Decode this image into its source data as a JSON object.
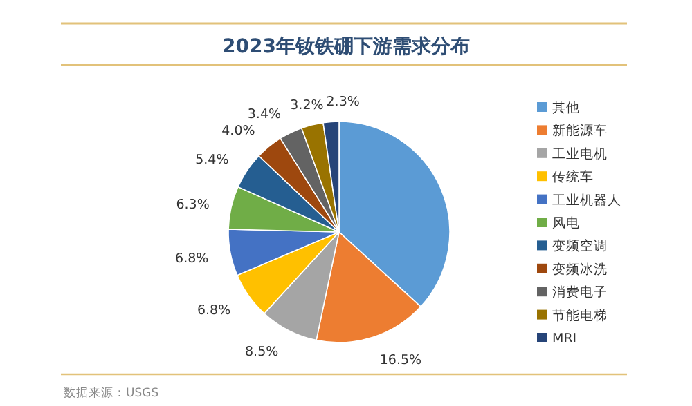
{
  "chart_data": {
    "type": "pie",
    "title": "2023年钕铁硼下游需求分布",
    "categories": [
      "其他",
      "新能源车",
      "工业电机",
      "传统车",
      "工业机器人",
      "风电",
      "变频空调",
      "变频冰洗",
      "消费电子",
      "节能电梯",
      "MRI"
    ],
    "values": [
      36.8,
      16.5,
      8.5,
      6.8,
      6.8,
      6.3,
      5.4,
      4.0,
      3.4,
      3.2,
      2.3
    ],
    "value_labels": [
      null,
      "16.5%",
      "8.5%",
      "6.8%",
      "6.8%",
      "6.3%",
      "5.4%",
      "4.0%",
      "3.4%",
      "3.2%",
      "2.3%"
    ],
    "colors": [
      "#5b9bd5",
      "#ed7d31",
      "#a5a5a5",
      "#ffc000",
      "#4472c4",
      "#70ad47",
      "#255e91",
      "#9e480e",
      "#636363",
      "#997300",
      "#264478"
    ],
    "legend": "right",
    "annotations": [
      "数据来源：USGS"
    ]
  }
}
